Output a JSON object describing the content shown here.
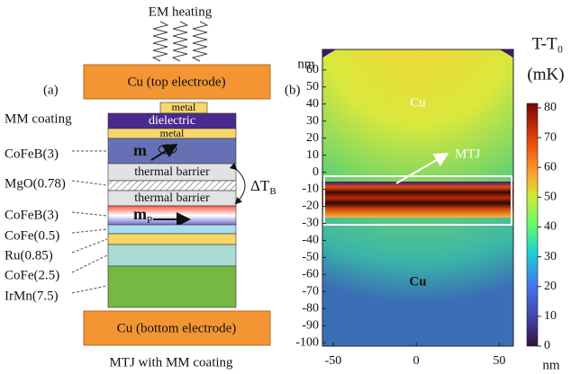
{
  "panel_a": {
    "label": "(a)",
    "heating": "EM heating",
    "top_electrode": "Cu (top electrode)",
    "bottom_electrode": "Cu (bottom electrode)",
    "caption": "MTJ with MM coating",
    "layers": {
      "metal_top": "metal",
      "dielectric": "dielectric",
      "metal_bottom": "metal",
      "barrier_top": "thermal barrier",
      "barrier_bottom": "thermal barrier",
      "m": "m",
      "mp": "m",
      "mp_sub": "P"
    },
    "side_labels": [
      "MM coating",
      "CoFeB(3)",
      "MgO(0.78)",
      "CoFeB(3)",
      "CoFe(0.5)",
      "Ru(0.85)",
      "CoFe(2.5)",
      "IrMn(7.5)"
    ],
    "delta": "ΔT",
    "delta_sub": "B"
  },
  "panel_b": {
    "label": "(b)",
    "y_unit": "nm",
    "x_unit": "nm",
    "ylim": [
      -102,
      72
    ],
    "yticks": [
      60,
      50,
      40,
      30,
      20,
      10,
      0,
      -10,
      -20,
      -30,
      -40,
      -50,
      -60,
      -70,
      -80,
      -90,
      -100
    ],
    "xlim": [
      -56.5,
      58.5
    ],
    "xticks": [
      -50,
      0,
      50
    ],
    "top_region": "Cu",
    "bottom_region": "Cu",
    "mtj": "MTJ",
    "colorbar": {
      "title": "T-T₀",
      "unit": "(mK)",
      "lim": [
        0,
        81.5
      ],
      "ticks": [
        0,
        10,
        20,
        30,
        40,
        50,
        60,
        70,
        80
      ]
    }
  }
}
